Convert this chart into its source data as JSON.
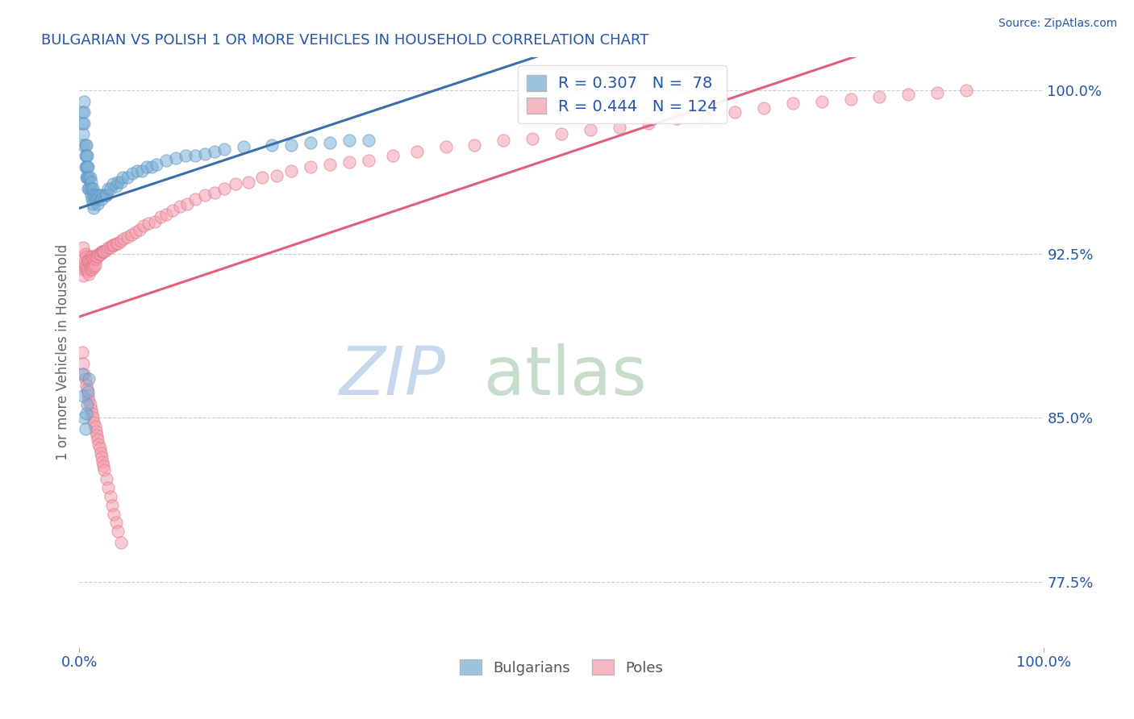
{
  "title": "BULGARIAN VS POLISH 1 OR MORE VEHICLES IN HOUSEHOLD CORRELATION CHART",
  "source": "Source: ZipAtlas.com",
  "ylabel": "1 or more Vehicles in Household",
  "xlim": [
    0.0,
    1.0
  ],
  "ylim": [
    0.745,
    1.015
  ],
  "yticks": [
    0.775,
    0.85,
    0.925,
    1.0
  ],
  "ytick_labels": [
    "77.5%",
    "85.0%",
    "92.5%",
    "100.0%"
  ],
  "xticks": [
    0.0,
    1.0
  ],
  "xtick_labels": [
    "0.0%",
    "100.0%"
  ],
  "bulgarian_color": "#7BAFD4",
  "bulgarian_edge": "#5B8FBF",
  "polish_color": "#F4A0B0",
  "polish_edge": "#E07080",
  "trendline_bulgarian": "#3A6FA8",
  "trendline_polish": "#E0607A",
  "bulgarian_R": 0.307,
  "bulgarian_N": 78,
  "polish_R": 0.444,
  "polish_N": 124,
  "legend_label_bulgarian": "Bulgarians",
  "legend_label_polish": "Poles",
  "background_color": "#FFFFFF",
  "grid_color": "#CCCCCC",
  "title_color": "#2255AA",
  "source_color": "#2255AA",
  "ylabel_color": "#666666",
  "tick_color": "#2255AA",
  "watermark_zip_color": "#C8D8EC",
  "watermark_atlas_color": "#C8DCCC",
  "dot_size": 120,
  "dot_alpha": 0.55,
  "bulgarian_x": [
    0.003,
    0.003,
    0.004,
    0.004,
    0.005,
    0.005,
    0.005,
    0.006,
    0.006,
    0.006,
    0.007,
    0.007,
    0.007,
    0.007,
    0.008,
    0.008,
    0.008,
    0.009,
    0.009,
    0.009,
    0.01,
    0.01,
    0.011,
    0.011,
    0.012,
    0.012,
    0.013,
    0.013,
    0.014,
    0.014,
    0.015,
    0.015,
    0.016,
    0.017,
    0.018,
    0.019,
    0.02,
    0.022,
    0.023,
    0.025,
    0.027,
    0.028,
    0.03,
    0.032,
    0.035,
    0.038,
    0.04,
    0.043,
    0.045,
    0.05,
    0.055,
    0.06,
    0.065,
    0.07,
    0.075,
    0.08,
    0.09,
    0.1,
    0.11,
    0.12,
    0.13,
    0.14,
    0.15,
    0.17,
    0.2,
    0.22,
    0.24,
    0.26,
    0.28,
    0.3,
    0.003,
    0.004,
    0.005,
    0.006,
    0.007,
    0.008,
    0.009,
    0.01
  ],
  "bulgarian_y": [
    0.99,
    0.985,
    0.98,
    0.975,
    0.995,
    0.99,
    0.985,
    0.975,
    0.97,
    0.965,
    0.975,
    0.97,
    0.965,
    0.96,
    0.97,
    0.965,
    0.96,
    0.965,
    0.96,
    0.955,
    0.96,
    0.955,
    0.96,
    0.955,
    0.958,
    0.952,
    0.955,
    0.95,
    0.955,
    0.948,
    0.952,
    0.946,
    0.95,
    0.952,
    0.95,
    0.948,
    0.952,
    0.952,
    0.95,
    0.952,
    0.952,
    0.952,
    0.955,
    0.955,
    0.957,
    0.956,
    0.958,
    0.958,
    0.96,
    0.96,
    0.962,
    0.963,
    0.963,
    0.965,
    0.965,
    0.966,
    0.968,
    0.969,
    0.97,
    0.97,
    0.971,
    0.972,
    0.973,
    0.974,
    0.975,
    0.975,
    0.976,
    0.976,
    0.977,
    0.977,
    0.87,
    0.86,
    0.85,
    0.845,
    0.852,
    0.856,
    0.862,
    0.868
  ],
  "polish_x": [
    0.003,
    0.004,
    0.004,
    0.005,
    0.005,
    0.006,
    0.006,
    0.007,
    0.007,
    0.008,
    0.008,
    0.009,
    0.009,
    0.01,
    0.01,
    0.011,
    0.011,
    0.012,
    0.012,
    0.013,
    0.013,
    0.014,
    0.014,
    0.015,
    0.015,
    0.016,
    0.016,
    0.017,
    0.018,
    0.019,
    0.02,
    0.021,
    0.022,
    0.023,
    0.024,
    0.025,
    0.026,
    0.028,
    0.03,
    0.032,
    0.034,
    0.036,
    0.038,
    0.04,
    0.043,
    0.046,
    0.05,
    0.054,
    0.058,
    0.062,
    0.067,
    0.072,
    0.078,
    0.084,
    0.09,
    0.097,
    0.104,
    0.112,
    0.12,
    0.13,
    0.14,
    0.15,
    0.162,
    0.175,
    0.19,
    0.205,
    0.22,
    0.24,
    0.26,
    0.28,
    0.3,
    0.325,
    0.35,
    0.38,
    0.41,
    0.44,
    0.47,
    0.5,
    0.53,
    0.56,
    0.59,
    0.62,
    0.65,
    0.68,
    0.71,
    0.74,
    0.77,
    0.8,
    0.83,
    0.86,
    0.89,
    0.92,
    0.003,
    0.004,
    0.005,
    0.006,
    0.007,
    0.008,
    0.009,
    0.01,
    0.011,
    0.012,
    0.013,
    0.014,
    0.015,
    0.016,
    0.017,
    0.018,
    0.019,
    0.02,
    0.021,
    0.022,
    0.023,
    0.024,
    0.025,
    0.026,
    0.028,
    0.03,
    0.032,
    0.034,
    0.036,
    0.038,
    0.04,
    0.043
  ],
  "polish_y": [
    0.92,
    0.915,
    0.928,
    0.923,
    0.918,
    0.925,
    0.919,
    0.924,
    0.918,
    0.922,
    0.918,
    0.922,
    0.917,
    0.922,
    0.916,
    0.922,
    0.918,
    0.924,
    0.919,
    0.923,
    0.918,
    0.924,
    0.92,
    0.923,
    0.919,
    0.924,
    0.92,
    0.923,
    0.924,
    0.924,
    0.925,
    0.925,
    0.925,
    0.926,
    0.926,
    0.926,
    0.926,
    0.927,
    0.928,
    0.928,
    0.929,
    0.929,
    0.93,
    0.93,
    0.931,
    0.932,
    0.933,
    0.934,
    0.935,
    0.936,
    0.938,
    0.939,
    0.94,
    0.942,
    0.943,
    0.945,
    0.947,
    0.948,
    0.95,
    0.952,
    0.953,
    0.955,
    0.957,
    0.958,
    0.96,
    0.961,
    0.963,
    0.965,
    0.966,
    0.967,
    0.968,
    0.97,
    0.972,
    0.974,
    0.975,
    0.977,
    0.978,
    0.98,
    0.982,
    0.983,
    0.985,
    0.987,
    0.988,
    0.99,
    0.992,
    0.994,
    0.995,
    0.996,
    0.997,
    0.998,
    0.999,
    1.0,
    0.88,
    0.875,
    0.87,
    0.868,
    0.865,
    0.863,
    0.86,
    0.858,
    0.856,
    0.854,
    0.852,
    0.85,
    0.848,
    0.846,
    0.844,
    0.842,
    0.84,
    0.838,
    0.836,
    0.834,
    0.832,
    0.83,
    0.828,
    0.826,
    0.822,
    0.818,
    0.814,
    0.81,
    0.806,
    0.802,
    0.798,
    0.793
  ]
}
